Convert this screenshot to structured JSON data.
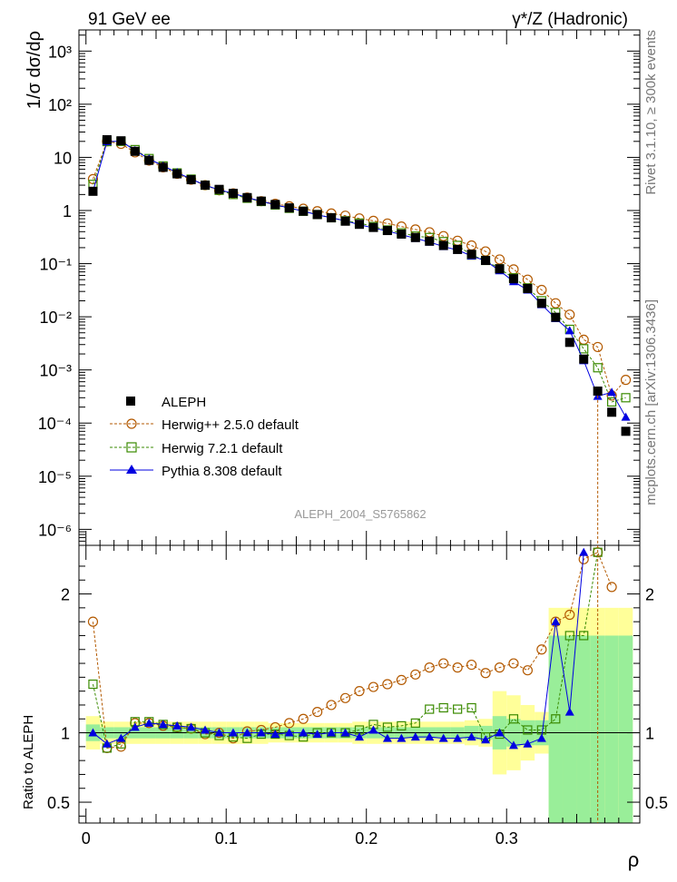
{
  "chart_data": {
    "type": "line",
    "header_left": "91 GeV ee",
    "header_right": "γ*/Z (Hadronic)",
    "side_text_1": "Rivet 3.1.10, ≥ 300k events",
    "side_text_2": "mcplots.cern.ch [arXiv:1306.3436]",
    "analysis_label": "ALEPH_2004_S5765862",
    "ylabel": "1/σ  dσ/dρ",
    "ratio_ylabel": "Ratio to ALEPH",
    "xlabel": "ρ",
    "xlim": [
      -0.005,
      0.395
    ],
    "ylim": [
      5e-07,
      2500
    ],
    "ratio_ylim": [
      0.35,
      2.35
    ],
    "x_ticks": [
      {
        "value": 0,
        "label": "0"
      },
      {
        "value": 0.1,
        "label": "0.1"
      },
      {
        "value": 0.2,
        "label": "0.2"
      },
      {
        "value": 0.3,
        "label": "0.3"
      }
    ],
    "y_ticks": [
      {
        "value": 1000,
        "label": "10³"
      },
      {
        "value": 100,
        "label": "10²"
      },
      {
        "value": 10,
        "label": "10"
      },
      {
        "value": 1,
        "label": "1"
      },
      {
        "value": 0.1,
        "label": "10⁻¹"
      },
      {
        "value": 0.01,
        "label": "10⁻²"
      },
      {
        "value": 0.001,
        "label": "10⁻³"
      },
      {
        "value": 0.0001,
        "label": "10⁻⁴"
      },
      {
        "value": 1e-05,
        "label": "10⁻⁵"
      },
      {
        "value": 1e-06,
        "label": "10⁻⁶"
      }
    ],
    "ratio_ticks": [
      {
        "value": 2,
        "label": "2"
      },
      {
        "value": 1,
        "label": "1"
      },
      {
        "value": 0.5,
        "label": "0.5"
      }
    ],
    "x": [
      0.005,
      0.015,
      0.025,
      0.035,
      0.045,
      0.055,
      0.065,
      0.075,
      0.085,
      0.095,
      0.105,
      0.115,
      0.125,
      0.135,
      0.145,
      0.155,
      0.165,
      0.175,
      0.185,
      0.195,
      0.205,
      0.215,
      0.225,
      0.235,
      0.245,
      0.255,
      0.265,
      0.275,
      0.285,
      0.295,
      0.305,
      0.315,
      0.325,
      0.335,
      0.345,
      0.355,
      0.365,
      0.375,
      0.385
    ],
    "series": [
      {
        "name": "ALEPH",
        "color": "#000000",
        "marker": "square",
        "values": [
          2.3,
          21.5,
          20.5,
          13.0,
          8.8,
          6.5,
          4.9,
          3.8,
          3.0,
          2.5,
          2.1,
          1.75,
          1.5,
          1.3,
          1.12,
          0.97,
          0.84,
          0.73,
          0.63,
          0.55,
          0.48,
          0.42,
          0.36,
          0.31,
          0.265,
          0.22,
          0.185,
          0.15,
          0.115,
          0.08,
          0.052,
          0.034,
          0.018,
          0.0098,
          0.0033,
          0.0016,
          0.0004,
          0.00016,
          7e-05
        ]
      },
      {
        "name": "Herwig++ 2.5.0 default",
        "color": "#b35900",
        "marker": "circle",
        "values": [
          3.9,
          20.0,
          18.0,
          12.4,
          8.7,
          6.5,
          4.9,
          3.8,
          3.0,
          2.4,
          2.1,
          1.75,
          1.5,
          1.34,
          1.2,
          1.08,
          0.97,
          0.88,
          0.8,
          0.71,
          0.64,
          0.57,
          0.5,
          0.44,
          0.39,
          0.33,
          0.27,
          0.22,
          0.17,
          0.12,
          0.078,
          0.05,
          0.032,
          0.018,
          0.011,
          0.0037,
          0.0027,
          0.00033,
          0.00065
        ]
      },
      {
        "name": "Herwig 7.2.1 default",
        "color": "#3a8a00",
        "marker": "open-square",
        "values": [
          3.1,
          19.8,
          20.0,
          14.0,
          9.5,
          6.9,
          5.1,
          3.9,
          3.0,
          2.4,
          2.0,
          1.7,
          1.48,
          1.27,
          1.1,
          0.97,
          0.84,
          0.73,
          0.64,
          0.58,
          0.5,
          0.43,
          0.38,
          0.33,
          0.31,
          0.26,
          0.22,
          0.145,
          0.115,
          0.08,
          0.054,
          0.035,
          0.02,
          0.012,
          0.0058,
          0.0025,
          0.0011,
          0.00025,
          0.0003
        ]
      },
      {
        "name": "Pythia 8.308 default",
        "color": "#0000e0",
        "marker": "triangle",
        "values": [
          2.3,
          19.8,
          20.2,
          13.5,
          9.4,
          6.9,
          5.2,
          3.9,
          3.0,
          2.45,
          2.1,
          1.75,
          1.5,
          1.28,
          1.12,
          0.97,
          0.83,
          0.73,
          0.64,
          0.54,
          0.47,
          0.41,
          0.35,
          0.3,
          0.255,
          0.21,
          0.18,
          0.14,
          0.113,
          0.074,
          0.046,
          0.032,
          0.017,
          0.0093,
          0.0055,
          0.0015,
          0.00032,
          0.00038,
          0.00013
        ]
      }
    ],
    "ratio": [
      {
        "name": "Herwig++ 2.5.0 default",
        "values": [
          1.8,
          0.89,
          0.9,
          1.07,
          1.07,
          1.05,
          1.04,
          1.03,
          0.99,
          1.0,
          0.96,
          1.01,
          1.02,
          1.04,
          1.07,
          1.1,
          1.15,
          1.2,
          1.25,
          1.3,
          1.33,
          1.35,
          1.38,
          1.42,
          1.47,
          1.5,
          1.47,
          1.49,
          1.43,
          1.47,
          1.5,
          1.45,
          1.6,
          1.8,
          1.85,
          2.25,
          2.3,
          2.05
        ]
      },
      {
        "name": "Herwig 7.2.1 default",
        "values": [
          1.35,
          0.89,
          0.92,
          1.08,
          1.08,
          1.06,
          1.04,
          1.03,
          1.0,
          0.98,
          0.97,
          0.96,
          0.99,
          0.99,
          0.98,
          0.97,
          1.0,
          1.0,
          1.0,
          1.02,
          1.06,
          1.04,
          1.05,
          1.07,
          1.17,
          1.18,
          1.17,
          1.18,
          0.97,
          0.99,
          1.1,
          1.02,
          1.02,
          1.1,
          1.7,
          1.7,
          2.3
        ]
      },
      {
        "name": "Pythia 8.308 default",
        "values": [
          1.0,
          0.92,
          0.96,
          1.04,
          1.07,
          1.06,
          1.05,
          1.04,
          1.02,
          1.0,
          1.0,
          1.0,
          1.0,
          0.99,
          1.0,
          1.0,
          0.99,
          1.0,
          1.0,
          0.97,
          1.02,
          0.96,
          0.96,
          0.97,
          0.97,
          0.96,
          0.96,
          0.97,
          0.95,
          1.0,
          0.91,
          0.92,
          0.96,
          1.8,
          1.15,
          2.3
        ]
      }
    ],
    "bands": {
      "yellow": [
        0.12,
        0.08,
        0.08,
        0.08,
        0.08,
        0.08,
        0.08,
        0.08,
        0.08,
        0.08,
        0.08,
        0.08,
        0.08,
        0.07,
        0.07,
        0.07,
        0.07,
        0.07,
        0.07,
        0.08,
        0.08,
        0.08,
        0.08,
        0.08,
        0.08,
        0.08,
        0.08,
        0.09,
        0.1,
        0.3,
        0.27,
        0.2,
        0.15,
        0.9,
        0.9,
        0.9,
        0.9,
        0.9,
        0.9
      ],
      "green": [
        0.06,
        0.04,
        0.04,
        0.04,
        0.04,
        0.04,
        0.04,
        0.04,
        0.04,
        0.04,
        0.04,
        0.04,
        0.04,
        0.04,
        0.04,
        0.04,
        0.04,
        0.04,
        0.04,
        0.04,
        0.04,
        0.04,
        0.04,
        0.04,
        0.04,
        0.04,
        0.04,
        0.05,
        0.05,
        0.12,
        0.1,
        0.09,
        0.09,
        0.7,
        0.7,
        0.7,
        0.7,
        0.7,
        0.7
      ]
    },
    "legend_position": "lower-left"
  }
}
